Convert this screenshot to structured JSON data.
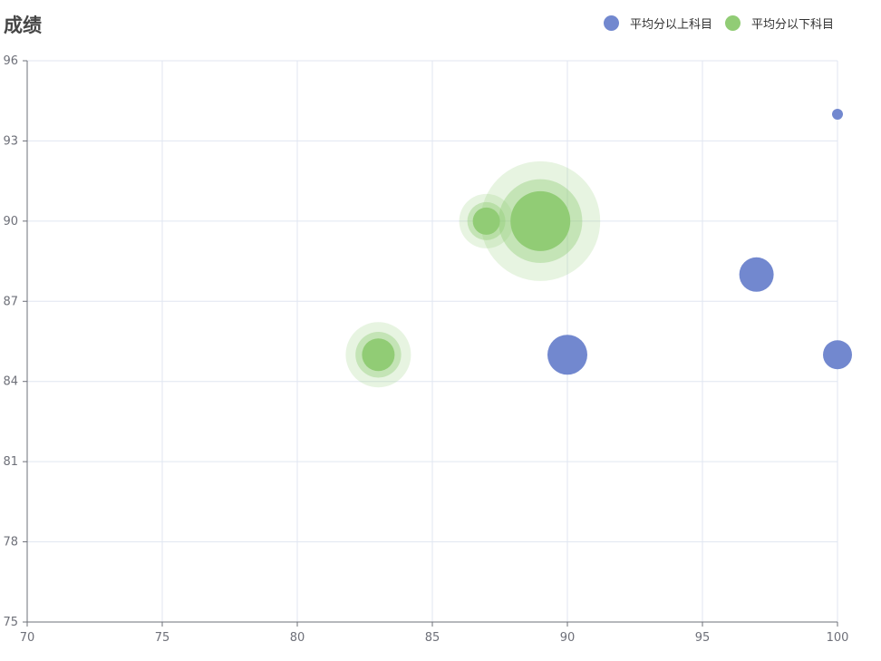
{
  "chart_data": {
    "type": "scatter",
    "title": "成绩",
    "xlim": [
      70,
      100
    ],
    "ylim": [
      75,
      96
    ],
    "x_ticks": [
      70,
      75,
      80,
      85,
      90,
      95,
      100
    ],
    "y_ticks": [
      75,
      78,
      81,
      84,
      87,
      90,
      93,
      96
    ],
    "grid": true,
    "legend_position": "top-right",
    "series": [
      {
        "name": "平均分以上科目",
        "color": "#7288cf",
        "effect_ripple": false,
        "points": [
          {
            "x": 100,
            "y": 94,
            "size": 12
          },
          {
            "x": 97,
            "y": 88,
            "size": 38
          },
          {
            "x": 90,
            "y": 85,
            "size": 44
          },
          {
            "x": 100,
            "y": 85,
            "size": 32
          }
        ]
      },
      {
        "name": "平均分以下科目",
        "color": "#91cc75",
        "effect_ripple": true,
        "points": [
          {
            "x": 89,
            "y": 90,
            "size": 66
          },
          {
            "x": 87,
            "y": 90,
            "size": 30
          },
          {
            "x": 83,
            "y": 85,
            "size": 36
          }
        ]
      }
    ]
  }
}
